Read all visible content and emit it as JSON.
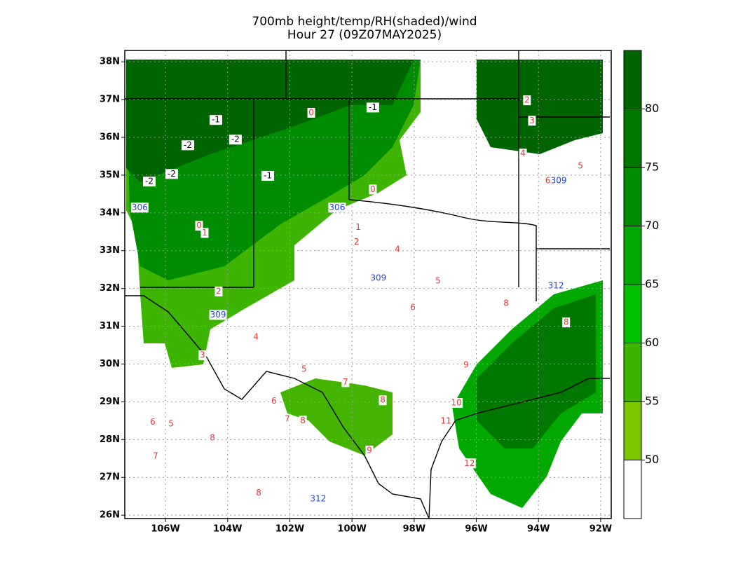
{
  "chart_data": {
    "type": "map",
    "title": "700mb height/temp/RH(shaded)/wind",
    "subtitle": "Hour 27 (09Z07MAY2025)",
    "xlim": [
      -107.31,
      -91.66
    ],
    "ylim": [
      25.91,
      38.3
    ],
    "grid": true,
    "xticks": [
      {
        "value": -106,
        "label": "106W"
      },
      {
        "value": -104,
        "label": "104W"
      },
      {
        "value": -102,
        "label": "102W"
      },
      {
        "value": -100,
        "label": "100W"
      },
      {
        "value": -98,
        "label": "98W"
      },
      {
        "value": -96,
        "label": "96W"
      },
      {
        "value": -94,
        "label": "94W"
      },
      {
        "value": -92,
        "label": "92W"
      }
    ],
    "yticks": [
      {
        "value": 26,
        "label": "26N"
      },
      {
        "value": 27,
        "label": "27N"
      },
      {
        "value": 28,
        "label": "28N"
      },
      {
        "value": 29,
        "label": "29N"
      },
      {
        "value": 30,
        "label": "30N"
      },
      {
        "value": 31,
        "label": "31N"
      },
      {
        "value": 32,
        "label": "32N"
      },
      {
        "value": 33,
        "label": "33N"
      },
      {
        "value": 34,
        "label": "34N"
      },
      {
        "value": 35,
        "label": "35N"
      },
      {
        "value": 36,
        "label": "36N"
      },
      {
        "value": 37,
        "label": "37N"
      },
      {
        "value": 38,
        "label": "38N"
      }
    ],
    "colorbar": {
      "lim": [
        45,
        85
      ],
      "ticks": [
        50,
        55,
        60,
        65,
        70,
        75,
        80
      ],
      "colors": [
        "#ffffff",
        "#7ac800",
        "#3cb400",
        "#00c000",
        "#00a800",
        "#008c00",
        "#007800",
        "#006400"
      ]
    },
    "height_contours": {
      "color": "#2244dd",
      "labels": [
        {
          "value": 306,
          "lon": -106.83,
          "lat": 34.14
        },
        {
          "value": 306,
          "lon": -100.48,
          "lat": 34.14
        },
        {
          "value": 309,
          "lon": -99.15,
          "lat": 32.27
        },
        {
          "value": 309,
          "lon": -104.31,
          "lat": 31.3
        },
        {
          "value": 309,
          "lon": -93.35,
          "lat": 34.85
        },
        {
          "value": 312,
          "lon": -93.44,
          "lat": 32.07
        },
        {
          "value": 312,
          "lon": -101.09,
          "lat": 26.43
        }
      ]
    },
    "temp_contours": {
      "color": "#e03a3a",
      "labels": [
        {
          "value": 0,
          "lon": -101.31,
          "lat": 36.65
        },
        {
          "value": 0,
          "lon": -99.33,
          "lat": 34.62
        },
        {
          "value": 0,
          "lon": -104.92,
          "lat": 33.66
        },
        {
          "value": 1,
          "lon": -104.74,
          "lat": 33.47
        },
        {
          "value": 1,
          "lon": -99.8,
          "lat": 33.62
        },
        {
          "value": 2,
          "lon": -99.85,
          "lat": 33.23
        },
        {
          "value": 2,
          "lon": -104.29,
          "lat": 31.92
        },
        {
          "value": 2,
          "lon": -94.37,
          "lat": 36.98
        },
        {
          "value": 3,
          "lon": -94.21,
          "lat": 36.44
        },
        {
          "value": 3,
          "lon": -104.81,
          "lat": 30.23
        },
        {
          "value": 4,
          "lon": -98.54,
          "lat": 33.03
        },
        {
          "value": 4,
          "lon": -103.09,
          "lat": 30.71
        },
        {
          "value": 4,
          "lon": -94.5,
          "lat": 35.57
        },
        {
          "value": 5,
          "lon": -97.23,
          "lat": 32.2
        },
        {
          "value": 5,
          "lon": -101.54,
          "lat": 29.86
        },
        {
          "value": 5,
          "lon": -105.82,
          "lat": 28.41
        },
        {
          "value": 5,
          "lon": -92.65,
          "lat": 35.24
        },
        {
          "value": 6,
          "lon": -98.04,
          "lat": 31.49
        },
        {
          "value": 6,
          "lon": -102.51,
          "lat": 29.02
        },
        {
          "value": 6,
          "lon": -106.41,
          "lat": 28.46
        },
        {
          "value": 6,
          "lon": -93.7,
          "lat": 34.85
        },
        {
          "value": 7,
          "lon": -100.21,
          "lat": 29.52
        },
        {
          "value": 7,
          "lon": -102.08,
          "lat": 28.54
        },
        {
          "value": 7,
          "lon": -106.32,
          "lat": 27.56
        },
        {
          "value": 8,
          "lon": -95.04,
          "lat": 31.6
        },
        {
          "value": 8,
          "lon": -99.01,
          "lat": 29.04
        },
        {
          "value": 8,
          "lon": -101.58,
          "lat": 28.5
        },
        {
          "value": 8,
          "lon": -104.49,
          "lat": 28.04
        },
        {
          "value": 8,
          "lon": -93.11,
          "lat": 31.1
        },
        {
          "value": 8,
          "lon": -103.0,
          "lat": 26.59
        },
        {
          "value": 9,
          "lon": -96.33,
          "lat": 29.97
        },
        {
          "value": 9,
          "lon": -99.44,
          "lat": 27.71
        },
        {
          "value": 10,
          "lon": -96.64,
          "lat": 28.97
        },
        {
          "value": 11,
          "lon": -96.98,
          "lat": 28.49
        },
        {
          "value": 12,
          "lon": -96.22,
          "lat": 27.37
        }
      ]
    },
    "cold_temp_contours": {
      "color": "#000000",
      "labels": [
        {
          "value": -1,
          "lon": -104.38,
          "lat": 36.46
        },
        {
          "value": -1,
          "lon": -99.33,
          "lat": 36.79
        },
        {
          "value": -1,
          "lon": -102.71,
          "lat": 34.98
        },
        {
          "value": -2,
          "lon": -105.28,
          "lat": 35.79
        },
        {
          "value": -2,
          "lon": -103.75,
          "lat": 35.94
        },
        {
          "value": -2,
          "lon": -105.8,
          "lat": 35.03
        },
        {
          "value": -2,
          "lon": -106.52,
          "lat": 34.83
        }
      ]
    }
  }
}
